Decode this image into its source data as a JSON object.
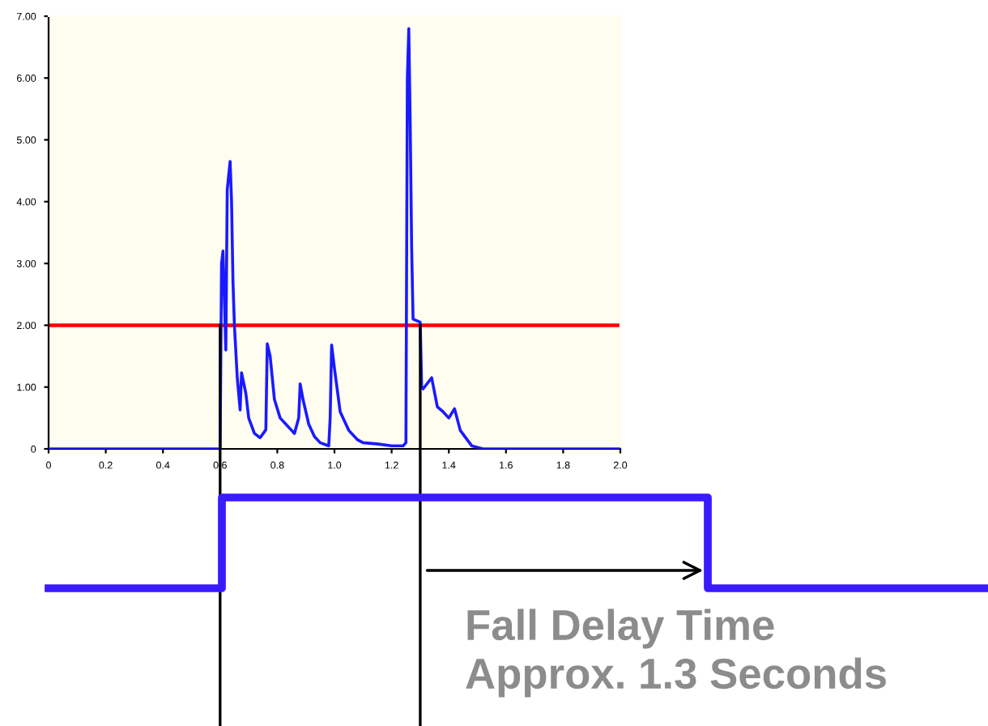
{
  "chart_data": [
    {
      "type": "line",
      "x": [
        0,
        0.6,
        0.605,
        0.61,
        0.615,
        0.62,
        0.625,
        0.635,
        0.64,
        0.645,
        0.65,
        0.66,
        0.67,
        0.675,
        0.69,
        0.7,
        0.72,
        0.74,
        0.76,
        0.765,
        0.775,
        0.79,
        0.81,
        0.83,
        0.85,
        0.86,
        0.875,
        0.88,
        0.89,
        0.91,
        0.93,
        0.95,
        0.98,
        0.985,
        0.99,
        1.0,
        1.02,
        1.05,
        1.08,
        1.1,
        1.15,
        1.2,
        1.24,
        1.25,
        1.255,
        1.26,
        1.265,
        1.27,
        1.275,
        1.3,
        1.305,
        1.31,
        1.34,
        1.36,
        1.38,
        1.4,
        1.42,
        1.44,
        1.48,
        1.52,
        2.0
      ],
      "series": [
        {
          "color": "#1a1aff",
          "values": [
            0,
            0,
            3.0,
            3.2,
            2.4,
            1.6,
            4.2,
            4.65,
            4.0,
            2.7,
            2.0,
            1.15,
            0.63,
            1.23,
            0.9,
            0.5,
            0.25,
            0.18,
            0.31,
            1.7,
            1.5,
            0.8,
            0.5,
            0.4,
            0.3,
            0.25,
            0.5,
            1.05,
            0.8,
            0.4,
            0.2,
            0.1,
            0.05,
            0.5,
            1.68,
            1.3,
            0.6,
            0.3,
            0.15,
            0.1,
            0.08,
            0.05,
            0.05,
            0.1,
            6.0,
            6.8,
            5.25,
            3.25,
            2.1,
            2.05,
            1.0,
            0.97,
            1.15,
            0.68,
            0.6,
            0.5,
            0.65,
            0.3,
            0.05,
            0,
            0
          ]
        }
      ],
      "xlim": [
        0,
        2.0
      ],
      "ylim": [
        0,
        7.0
      ],
      "xticks": [
        {
          "value": 0,
          "label": "0"
        },
        {
          "value": 0.2,
          "label": "0.2"
        },
        {
          "value": 0.4,
          "label": "0.4"
        },
        {
          "value": 0.6,
          "label": "0.6"
        },
        {
          "value": 0.8,
          "label": "0.8"
        },
        {
          "value": 1.0,
          "label": "1.0"
        },
        {
          "value": 1.2,
          "label": "1.2"
        },
        {
          "value": 1.4,
          "label": "1.4"
        },
        {
          "value": 1.6,
          "label": "1.6"
        },
        {
          "value": 1.8,
          "label": "1.8"
        },
        {
          "value": 2.0,
          "label": "2.0"
        }
      ],
      "yticks": [
        {
          "value": 0,
          "label": "0"
        },
        {
          "value": 1,
          "label": "1.00"
        },
        {
          "value": 2,
          "label": "2.00"
        },
        {
          "value": 3,
          "label": "3.00"
        },
        {
          "value": 4,
          "label": "4.00"
        },
        {
          "value": 5,
          "label": "5.00"
        },
        {
          "value": 6,
          "label": "6.00"
        },
        {
          "value": 7,
          "label": "7.00"
        }
      ],
      "ref_lines": [
        {
          "axis": "y",
          "value": 2.0,
          "color": "#ff0000"
        },
        {
          "axis": "x",
          "value": 0.6,
          "color": "#000000"
        },
        {
          "axis": "x",
          "value": 1.3,
          "color": "#000000"
        }
      ],
      "grid": false
    },
    {
      "type": "other",
      "annotations": [
        "Fall Delay Time",
        "Approx. 1.3 Seconds"
      ]
    }
  ]
}
